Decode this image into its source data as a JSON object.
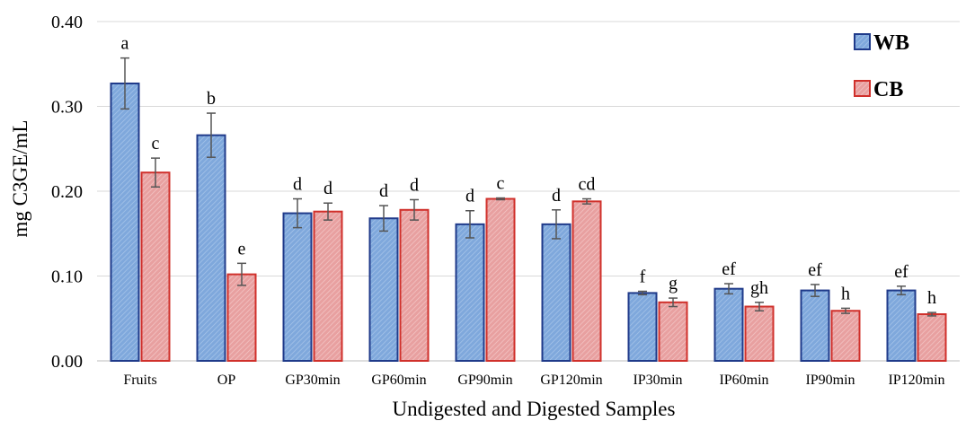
{
  "chart_data": {
    "type": "bar",
    "title": "",
    "xlabel": "Undigested and Digested Samples",
    "ylabel": "mg C3GE/mL",
    "ylim": [
      0,
      0.4
    ],
    "yticks": [
      "0.00",
      "0.10",
      "0.20",
      "0.30",
      "0.40"
    ],
    "categories": [
      "Fruits",
      "OP",
      "GP30min",
      "GP60min",
      "GP90min",
      "GP120min",
      "IP30min",
      "IP60min",
      "IP90min",
      "IP120min"
    ],
    "series": [
      {
        "name": "WB",
        "fill": "#7fa8dc",
        "stroke": "#1f3a8a",
        "values": [
          0.327,
          0.266,
          0.174,
          0.168,
          0.161,
          0.161,
          0.08,
          0.085,
          0.083,
          0.083
        ],
        "errors": [
          0.03,
          0.026,
          0.017,
          0.015,
          0.016,
          0.017,
          0.002,
          0.006,
          0.007,
          0.005
        ],
        "labels": [
          "a",
          "b",
          "d",
          "d",
          "d",
          "d",
          "f",
          "ef",
          "ef",
          "ef"
        ]
      },
      {
        "name": "CB",
        "fill": "#e8a0a0",
        "stroke": "#d0302b",
        "values": [
          0.222,
          0.102,
          0.176,
          0.178,
          0.191,
          0.188,
          0.069,
          0.064,
          0.059,
          0.055
        ],
        "errors": [
          0.017,
          0.013,
          0.01,
          0.012,
          0.001,
          0.003,
          0.005,
          0.005,
          0.003,
          0.002
        ],
        "labels": [
          "c",
          "e",
          "d",
          "d",
          "c",
          "cd",
          "g",
          "gh",
          "h",
          "h"
        ]
      }
    ],
    "grid": true,
    "legend_position": "top-right"
  }
}
